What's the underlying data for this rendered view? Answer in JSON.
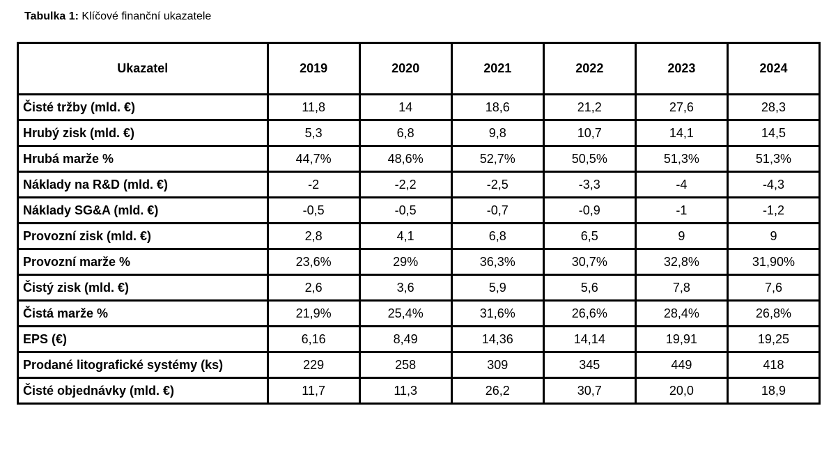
{
  "caption": {
    "prefix": "Tabulka 1:",
    "text": "Klíčové finanční ukazatele"
  },
  "table": {
    "border_color": "#000000",
    "background_color": "#ffffff",
    "text_color": "#000000",
    "header": [
      "Ukazatel",
      "2019",
      "2020",
      "2021",
      "2022",
      "2023",
      "2024"
    ],
    "rows": [
      {
        "label": "Čisté tržby (mld. €)",
        "values": [
          "11,8",
          "14",
          "18,6",
          "21,2",
          "27,6",
          "28,3"
        ]
      },
      {
        "label": "Hrubý zisk (mld. €)",
        "values": [
          "5,3",
          "6,8",
          "9,8",
          "10,7",
          "14,1",
          "14,5"
        ]
      },
      {
        "label": "Hrubá marže %",
        "values": [
          "44,7%",
          "48,6%",
          "52,7%",
          "50,5%",
          "51,3%",
          "51,3%"
        ]
      },
      {
        "label": "Náklady na R&D (mld. €)",
        "values": [
          "-2",
          "-2,2",
          "-2,5",
          "-3,3",
          "-4",
          "-4,3"
        ]
      },
      {
        "label": "Náklady SG&A (mld. €)",
        "values": [
          "-0,5",
          "-0,5",
          "-0,7",
          "-0,9",
          "-1",
          "-1,2"
        ]
      },
      {
        "label": "Provozní zisk (mld. €)",
        "values": [
          "2,8",
          "4,1",
          "6,8",
          "6,5",
          "9",
          "9"
        ]
      },
      {
        "label": "Provozní marže %",
        "values": [
          "23,6%",
          "29%",
          "36,3%",
          "30,7%",
          "32,8%",
          "31,90%"
        ]
      },
      {
        "label": "Čistý zisk (mld. €)",
        "values": [
          "2,6",
          "3,6",
          "5,9",
          "5,6",
          "7,8",
          "7,6"
        ]
      },
      {
        "label": "Čistá marže %",
        "values": [
          "21,9%",
          "25,4%",
          "31,6%",
          "26,6%",
          "28,4%",
          "26,8%"
        ]
      },
      {
        "label": "EPS (€)",
        "values": [
          "6,16",
          "8,49",
          "14,36",
          "14,14",
          "19,91",
          "19,25"
        ]
      },
      {
        "label": "Prodané litografické systémy (ks)",
        "values": [
          "229",
          "258",
          "309",
          "345",
          "449",
          "418"
        ]
      },
      {
        "label": "Čisté objednávky (mld. €)",
        "values": [
          "11,7",
          "11,3",
          "26,2",
          "30,7",
          "20,0",
          "18,9"
        ]
      }
    ]
  }
}
